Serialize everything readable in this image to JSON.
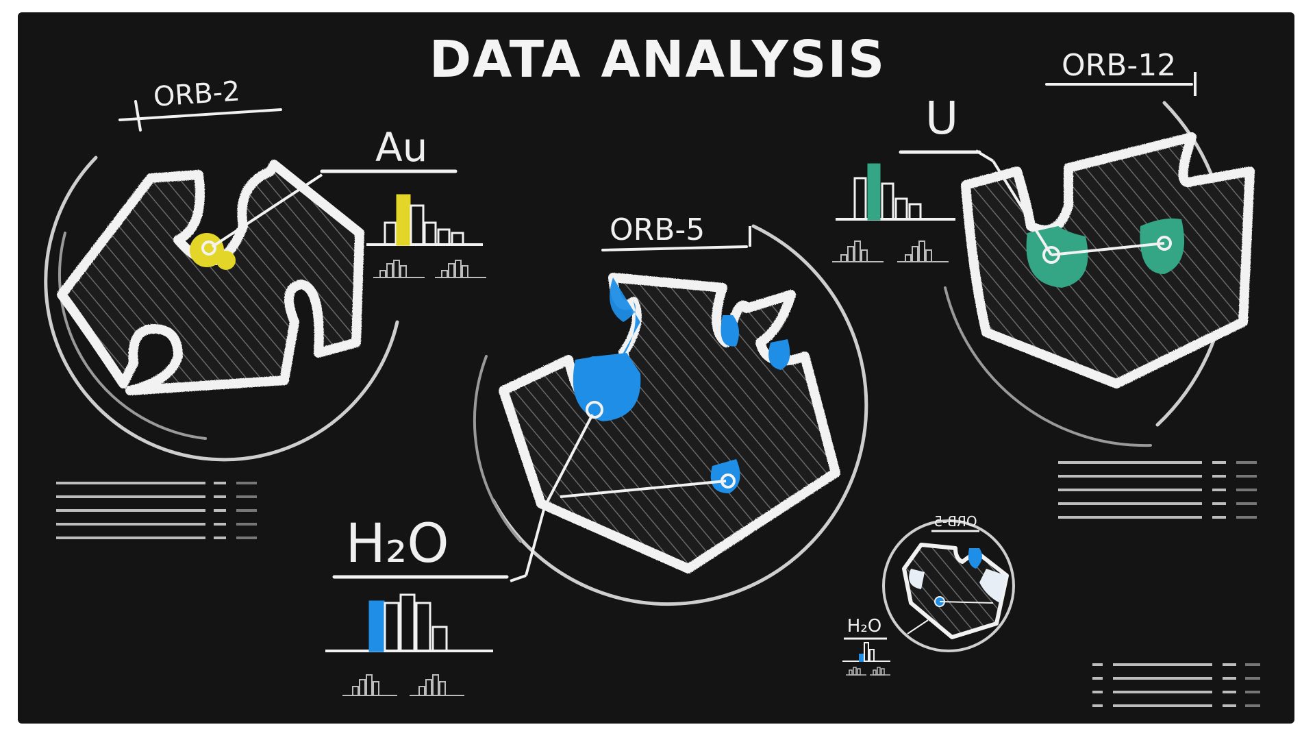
{
  "title": "DATA ANALYSIS",
  "colors": {
    "board": "#141414",
    "chalk": "#f2f2f2",
    "au": "#e3d628",
    "h2o": "#1e8ee6",
    "u": "#34a585"
  },
  "orbs": [
    {
      "id": "orb-2",
      "label": "ORB-2",
      "element": "Au",
      "accent": "au",
      "icon": "molecule-pocket-icon"
    },
    {
      "id": "orb-5",
      "label": "ORB-5",
      "element": "H₂O",
      "accent": "h2o",
      "icon": "molecule-pocket-icon"
    },
    {
      "id": "orb-12",
      "label": "ORB-12",
      "element": "U",
      "accent": "u",
      "icon": "molecule-pocket-icon"
    }
  ],
  "thumbnail": {
    "label": "ORB-5",
    "element": "H₂O",
    "accent": "h2o"
  }
}
